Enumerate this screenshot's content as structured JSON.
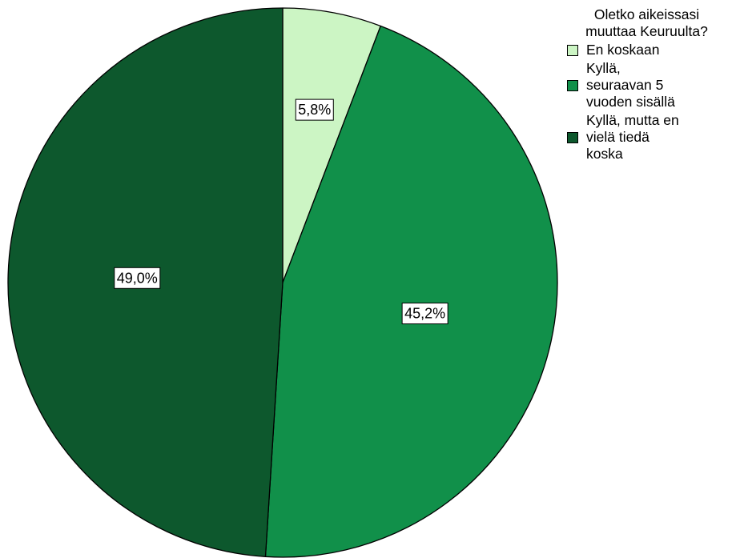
{
  "chart_data": {
    "type": "pie",
    "legend_title_lines": [
      "Oletko aikeissasi",
      "muuttaa Keuruulta?"
    ],
    "legend_position": "top-right",
    "slices": [
      {
        "label": "En koskaan",
        "legend_text": "En koskaan",
        "value": 5.8,
        "display": "5,8%",
        "color": "#ccf5c4"
      },
      {
        "label": "Kyllä, seuraavan 5 vuoden sisällä",
        "legend_text": "Kyllä,\nseuraavan 5\nvuoden sisällä",
        "value": 45.2,
        "display": "45,2%",
        "color": "#11904a"
      },
      {
        "label": "Kyllä, mutta en vielä tiedä koska",
        "legend_text": "Kyllä, mutta en\nvielä tiedä\nkoska",
        "value": 49.0,
        "display": "49,0%",
        "color": "#0d582d"
      }
    ]
  }
}
